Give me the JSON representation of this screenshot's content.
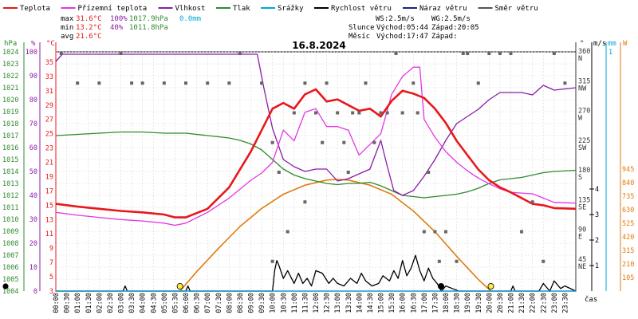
{
  "title": "16.8.2024",
  "legend": [
    {
      "label": "Teplota",
      "color": "#e8171b"
    },
    {
      "label": "Přízemní teplota",
      "color": "#e436e4"
    },
    {
      "label": "Vlhkost",
      "color": "#8a1ca8"
    },
    {
      "label": "Tlak",
      "color": "#2e8b2e"
    },
    {
      "label": "Srážky",
      "color": "#00a8d8"
    },
    {
      "label": "Rychlost větru",
      "color": "#000000"
    },
    {
      "label": "Náraz větru",
      "color": "#1d1d8c"
    },
    {
      "label": "Směr větru",
      "color": "#555555"
    }
  ],
  "stats": {
    "max": {
      "label": "max",
      "temp": "31.6°C",
      "hum": "100%",
      "press": "1017.9hPa",
      "rain": "0.0mm"
    },
    "min": {
      "label": "min",
      "temp": "13.2°C",
      "hum": "40%",
      "press": "1011.8hPa"
    },
    "avg": {
      "label": "avg",
      "temp": "21.6°C"
    }
  },
  "info": {
    "ws": "WS:2.5m/s",
    "wg": "WG:2.5m/s",
    "slunce": "Slunce",
    "slunce_vychod": "Východ:05:44",
    "slunce_zapad": "Západ:20:05",
    "mesic": "Měsíc",
    "mesic_vychod": "Východ:17:47",
    "mesic_zapad": "Západ:"
  },
  "axes": {
    "hpa_label": "hPa",
    "hum_label": "%",
    "temp_label": "°C",
    "deg_label": "°",
    "ms_label": "m/s",
    "mm_label": "mm",
    "w_label": "W",
    "x_label": "čas",
    "hpa_ticks": [
      "1024",
      "1023",
      "1022",
      "1021",
      "1020",
      "1019",
      "1018",
      "1017",
      "1016",
      "1015",
      "1014",
      "1013",
      "1012",
      "1011",
      "1010",
      "1009",
      "1008",
      "1007",
      "1006",
      "1005",
      "1004"
    ],
    "hum_ticks": [
      "100",
      "90",
      "80",
      "70",
      "60",
      "50",
      "40",
      "30",
      "20",
      "10",
      "0"
    ],
    "temp_ticks": [
      "35",
      "33",
      "31",
      "29",
      "27",
      "25",
      "23",
      "21",
      "19",
      "17",
      "15",
      "13",
      "11",
      "9",
      "7",
      "5",
      "3"
    ],
    "dir_ticks": [
      {
        "deg": "360",
        "dir": "N"
      },
      {
        "deg": "315",
        "dir": "NW"
      },
      {
        "deg": "270",
        "dir": "W"
      },
      {
        "deg": "225",
        "dir": "SW"
      },
      {
        "deg": "180",
        "dir": "S"
      },
      {
        "deg": "135",
        "dir": "SE"
      },
      {
        "deg": "90",
        "dir": "E"
      },
      {
        "deg": "45",
        "dir": "NE"
      }
    ],
    "wind_ticks": [
      "4",
      "3",
      "2",
      "1"
    ],
    "rain_top": "1",
    "w_ticks": [
      "945",
      "840",
      "735",
      "630",
      "525",
      "420",
      "315",
      "210",
      "105"
    ],
    "time_ticks": [
      "00:00",
      "00:30",
      "01:00",
      "01:30",
      "02:00",
      "02:30",
      "03:00",
      "03:30",
      "04:00",
      "04:30",
      "05:00",
      "05:30",
      "06:00",
      "06:30",
      "07:00",
      "07:30",
      "08:00",
      "08:30",
      "09:00",
      "09:30",
      "10:00",
      "10:30",
      "11:00",
      "11:30",
      "12:00",
      "12:30",
      "13:00",
      "13:30",
      "14:00",
      "14:30",
      "15:00",
      "15:30",
      "16:00",
      "16:30",
      "17:00",
      "17:30",
      "18:00",
      "18:30",
      "19:00",
      "19:30",
      "20:00",
      "20:30",
      "21:00",
      "21:30",
      "22:00",
      "22:30",
      "23:00",
      "23:30"
    ]
  },
  "chart_data": {
    "type": "line",
    "title": "16.8.2024",
    "xlabel": "čas",
    "x_unit": "hour of day",
    "xlim": [
      0,
      24
    ],
    "temp_ylim": [
      3,
      37
    ],
    "hum_ylim": [
      0,
      100
    ],
    "press_ylim": [
      1004,
      1024
    ],
    "wind_ylim": [
      0,
      4
    ],
    "dir_ylim": [
      0,
      360
    ],
    "solar_ylim": [
      0,
      1050
    ],
    "series": [
      {
        "name": "Teplota",
        "color": "#e8171b",
        "axis": "temp",
        "x": [
          0,
          1,
          2,
          3,
          4,
          5,
          5.5,
          6,
          7,
          8,
          9,
          9.5,
          10,
          10.5,
          11,
          11.5,
          12,
          12.5,
          13,
          13.5,
          14,
          14.5,
          15,
          15.5,
          16,
          16.5,
          17,
          17.5,
          18,
          18.5,
          19,
          19.5,
          20,
          20.5,
          21,
          21.5,
          22,
          22.5,
          23,
          24
        ],
        "y": [
          15.2,
          14.8,
          14.5,
          14.2,
          14.0,
          13.7,
          13.3,
          13.3,
          14.5,
          17.5,
          22.5,
          25.5,
          28.5,
          29.3,
          28.5,
          30.5,
          31.2,
          29.5,
          29.8,
          29.0,
          28.2,
          28.5,
          27.4,
          29.6,
          31.0,
          30.6,
          30.0,
          28.5,
          26.5,
          24.0,
          22.0,
          20.0,
          18.5,
          17.5,
          16.8,
          16.0,
          15.2,
          15.0,
          14.6,
          14.5
        ]
      },
      {
        "name": "Přízemní teplota",
        "color": "#e436e4",
        "axis": "temp",
        "x": [
          0,
          1,
          2,
          3,
          4,
          5,
          5.5,
          6,
          7,
          8,
          9,
          9.5,
          10,
          10.5,
          11,
          11.5,
          12,
          12.5,
          13,
          13.5,
          14,
          14.5,
          15,
          15.5,
          16,
          16.5,
          16.8,
          17,
          17.5,
          18,
          18.5,
          19,
          19.5,
          20,
          20.5,
          21,
          21.5,
          22,
          22.5,
          23,
          24
        ],
        "y": [
          14.0,
          13.6,
          13.3,
          13.0,
          12.8,
          12.5,
          12.2,
          12.5,
          14.0,
          16.0,
          18.5,
          19.5,
          21.0,
          25.5,
          24.0,
          28.0,
          28.5,
          26.0,
          26.0,
          25.5,
          22.0,
          23.5,
          25.0,
          30.5,
          33.0,
          34.3,
          34.3,
          27.0,
          24.5,
          22.5,
          21.0,
          19.8,
          18.8,
          18.0,
          17.3,
          16.8,
          16.7,
          16.6,
          16.0,
          15.4,
          15.3
        ]
      },
      {
        "name": "Vlhkost",
        "color": "#8a1ca8",
        "axis": "hum",
        "x": [
          0,
          0.3,
          1,
          3,
          5,
          7,
          8,
          9,
          9.3,
          9.6,
          10,
          10.5,
          11,
          11.5,
          12,
          12.5,
          13,
          13.5,
          14,
          14.5,
          15,
          15.3,
          15.6,
          16,
          16.5,
          17,
          17.5,
          18,
          18.5,
          19,
          19.5,
          20,
          20.5,
          21,
          21.5,
          22,
          22.5,
          23,
          24
        ],
        "y": [
          96,
          99,
          99,
          99,
          99,
          99,
          99,
          99,
          99,
          85,
          68,
          55,
          52,
          50,
          51,
          51,
          46,
          47,
          49,
          51,
          63,
          52,
          42,
          40,
          42,
          48,
          55,
          63,
          70,
          73,
          76,
          80,
          83,
          83,
          83,
          82,
          86,
          84,
          85
        ]
      },
      {
        "name": "Tlak",
        "color": "#2e8b2e",
        "axis": "press",
        "x": [
          0,
          1,
          2,
          3,
          4,
          5,
          6,
          7,
          8,
          8.5,
          9,
          9.5,
          10,
          10.5,
          11,
          11.5,
          12,
          12.5,
          13,
          13.5,
          14,
          14.5,
          15,
          15.5,
          16,
          16.5,
          17,
          17.5,
          18,
          18.5,
          19,
          19.5,
          20,
          20.5,
          21,
          21.5,
          22,
          22.5,
          23,
          24
        ],
        "y": [
          1017.0,
          1017.1,
          1017.2,
          1017.3,
          1017.3,
          1017.2,
          1017.2,
          1017.0,
          1016.8,
          1016.6,
          1016.3,
          1015.8,
          1015.0,
          1014.2,
          1013.7,
          1013.4,
          1013.2,
          1013.0,
          1012.9,
          1013.0,
          1013.0,
          1013.1,
          1012.8,
          1012.4,
          1012.0,
          1011.9,
          1011.8,
          1011.9,
          1012.0,
          1012.1,
          1012.3,
          1012.6,
          1013.0,
          1013.3,
          1013.4,
          1013.5,
          1013.7,
          1013.9,
          1014.0,
          1014.1
        ]
      },
      {
        "name": "Rychlost větru",
        "color": "#000000",
        "axis": "wind",
        "x": [
          0,
          3.1,
          3.2,
          3.3,
          6,
          6.1,
          6.2,
          6.3,
          10,
          10.1,
          10.2,
          10.3,
          10.5,
          10.7,
          11,
          11.2,
          11.4,
          11.6,
          11.8,
          12,
          12.3,
          12.6,
          12.8,
          13,
          13.3,
          13.6,
          13.9,
          14.1,
          14.3,
          14.6,
          14.9,
          15.1,
          15.4,
          15.6,
          15.8,
          16,
          16.2,
          16.4,
          16.6,
          16.8,
          17,
          17.2,
          17.4,
          17.6,
          17.8,
          18,
          18.3,
          18.6,
          19.5,
          21,
          21.1,
          21.2,
          22.3,
          22.5,
          22.8,
          23,
          23.3,
          23.5,
          24
        ],
        "y": [
          0,
          0,
          0.2,
          0,
          0,
          0.2,
          0,
          0,
          0,
          0.8,
          1.2,
          1.0,
          0.5,
          0.8,
          0.3,
          0.7,
          0.3,
          0.5,
          0.2,
          0.8,
          0.7,
          0.3,
          0.5,
          0.3,
          0.2,
          0.5,
          0.3,
          0.7,
          0.4,
          0.2,
          0.3,
          0.6,
          0.4,
          0.8,
          0.5,
          1.2,
          0.6,
          0.9,
          1.4,
          0.8,
          0.4,
          0.9,
          0.5,
          0.3,
          0,
          0.2,
          0.1,
          0,
          0,
          0,
          0.2,
          0,
          0,
          0.3,
          0,
          0.4,
          0.1,
          0.2,
          0
        ]
      },
      {
        "name": "Náraz větru",
        "color": "#1d1d8c",
        "axis": "wind",
        "x": [
          0,
          24
        ],
        "y": [
          0,
          0
        ]
      },
      {
        "name": "Srážky",
        "color": "#00a8d8",
        "axis": "rain",
        "x": [
          0,
          24
        ],
        "y": [
          0,
          0
        ]
      },
      {
        "name": "Sluneční záření",
        "color": "#e07b10",
        "axis": "solar",
        "x": [
          5.73,
          6.5,
          7.5,
          8.5,
          9.5,
          10.5,
          11.5,
          12.5,
          13.0,
          13.5,
          14.5,
          15.5,
          16.5,
          17.5,
          18.5,
          19.5,
          20.08
        ],
        "y": [
          0,
          150,
          330,
          500,
          640,
          750,
          820,
          860,
          865,
          860,
          820,
          750,
          620,
          460,
          270,
          90,
          0
        ]
      }
    ],
    "wind_direction": {
      "name": "Směr větru",
      "points": [
        [
          0.25,
          360
        ],
        [
          1,
          315
        ],
        [
          2,
          315
        ],
        [
          3,
          360
        ],
        [
          3.5,
          315
        ],
        [
          4,
          315
        ],
        [
          5,
          315
        ],
        [
          6,
          315
        ],
        [
          7,
          315
        ],
        [
          8,
          315
        ],
        [
          8.5,
          360
        ],
        [
          9.5,
          315
        ],
        [
          10,
          45
        ],
        [
          10,
          225
        ],
        [
          10.3,
          180
        ],
        [
          10.7,
          90
        ],
        [
          11,
          270
        ],
        [
          11.5,
          135
        ],
        [
          11.5,
          315
        ],
        [
          12,
          270
        ],
        [
          12.3,
          225
        ],
        [
          12.5,
          315
        ],
        [
          13,
          270
        ],
        [
          13.3,
          225
        ],
        [
          13.5,
          180
        ],
        [
          13.7,
          270
        ],
        [
          14,
          270
        ],
        [
          14.3,
          315
        ],
        [
          14.7,
          225
        ],
        [
          15,
          270
        ],
        [
          15.3,
          270
        ],
        [
          15.7,
          360
        ],
        [
          16,
          270
        ],
        [
          16.5,
          315
        ],
        [
          16.7,
          270
        ],
        [
          17,
          90
        ],
        [
          17.2,
          180
        ],
        [
          17.5,
          90
        ],
        [
          17.7,
          45
        ],
        [
          18,
          90
        ],
        [
          18.5,
          45
        ],
        [
          18.8,
          360
        ],
        [
          19,
          360
        ],
        [
          19.5,
          315
        ],
        [
          20,
          360
        ],
        [
          20.5,
          360
        ],
        [
          21,
          360
        ],
        [
          21.5,
          90
        ],
        [
          22,
          135
        ],
        [
          22.5,
          45
        ],
        [
          23,
          360
        ],
        [
          23.5,
          315
        ]
      ]
    },
    "markers": [
      {
        "name": "sunrise",
        "x": 5.73,
        "color": "#ffeb3b"
      },
      {
        "name": "sunset",
        "x": 20.08,
        "color": "#ffeb3b"
      },
      {
        "name": "moonrise",
        "x": 17.78,
        "color": "#000000"
      }
    ]
  }
}
